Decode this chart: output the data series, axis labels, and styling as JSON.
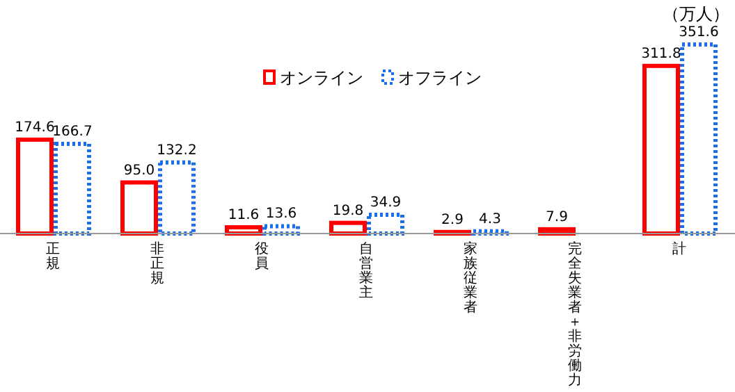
{
  "chart_data": {
    "type": "bar",
    "ylabel": "（万人）",
    "categories": [
      "正規",
      "非正規",
      "役員",
      "自営業主",
      "家族従業者",
      "完全失業者＋非労働力",
      "計"
    ],
    "series": [
      {
        "name": "オンライン",
        "color": "#ff0000",
        "line_style": "solid",
        "values": [
          174.6,
          95.0,
          11.6,
          19.8,
          2.9,
          7.9,
          311.8
        ],
        "value_labels": [
          "174.6",
          "95.0",
          "11.6",
          "19.8",
          "2.9",
          "7.9",
          "311.8"
        ]
      },
      {
        "name": "オフライン",
        "color": "#1a6fe8",
        "line_style": "dotted",
        "values": [
          166.7,
          132.2,
          13.6,
          34.9,
          4.3,
          null,
          351.6
        ],
        "value_labels": [
          "166.7",
          "132.2",
          "13.6",
          "34.9",
          "4.3",
          null,
          "351.6"
        ]
      }
    ],
    "data_labels": true,
    "legend": "top",
    "grid": false
  }
}
